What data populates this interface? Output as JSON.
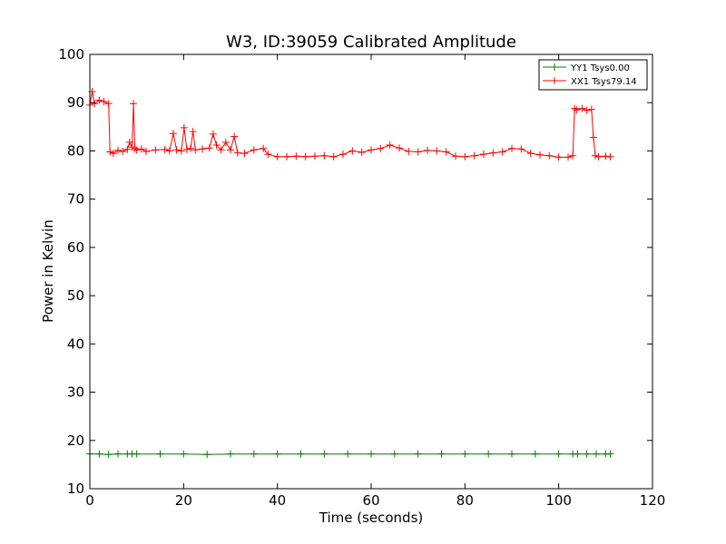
{
  "chart_data": {
    "type": "line",
    "title": "W3, ID:39059 Calibrated Amplitude",
    "xlabel": "Time (seconds)",
    "ylabel": "Power in Kelvin",
    "xlim": [
      0,
      120
    ],
    "ylim": [
      10,
      100
    ],
    "xticks": [
      "0",
      "20",
      "40",
      "60",
      "80",
      "100",
      "120"
    ],
    "yticks": [
      "10",
      "20",
      "30",
      "40",
      "50",
      "60",
      "70",
      "80",
      "90",
      "100"
    ],
    "grid": false,
    "legend_position": "top-right",
    "series": [
      {
        "name": "YY1 Tsys0.00",
        "color": "#008000",
        "marker": "+",
        "x": [
          0,
          2,
          4,
          6,
          8,
          9,
          10,
          15,
          20,
          25,
          30,
          35,
          40,
          45,
          50,
          55,
          60,
          65,
          70,
          75,
          80,
          85,
          90,
          95,
          100,
          103,
          104,
          106,
          108,
          110,
          111
        ],
        "y": [
          17.2,
          17.2,
          17.1,
          17.2,
          17.2,
          17.2,
          17.2,
          17.2,
          17.2,
          17.1,
          17.2,
          17.2,
          17.2,
          17.2,
          17.2,
          17.2,
          17.2,
          17.2,
          17.2,
          17.2,
          17.2,
          17.2,
          17.2,
          17.2,
          17.2,
          17.2,
          17.2,
          17.2,
          17.2,
          17.2,
          17.2
        ]
      },
      {
        "name": "XX1 Tsys79.14",
        "color": "#ff0000",
        "marker": "+",
        "x": [
          0,
          0.5,
          1,
          2,
          3,
          4,
          4.3,
          5,
          6,
          7,
          8,
          8.5,
          9,
          9.3,
          9.6,
          10,
          11,
          12,
          14,
          16,
          17,
          17.8,
          18.5,
          19.5,
          20.1,
          20.7,
          21.5,
          22,
          22.5,
          24,
          25.5,
          26.3,
          27,
          28,
          29,
          30,
          30.8,
          31.5,
          33,
          35,
          37,
          38,
          40,
          42,
          44,
          46,
          48,
          50,
          52,
          54,
          56,
          58,
          60,
          62,
          64,
          66,
          68,
          70,
          72,
          74,
          76,
          78,
          80,
          82,
          84,
          86,
          88,
          90,
          92,
          94,
          96,
          98,
          100,
          102,
          103,
          103.4,
          103.8,
          105,
          106,
          107,
          107.4,
          107.8,
          108.5,
          110,
          111
        ],
        "y": [
          89.5,
          92.3,
          89.8,
          90.5,
          90.2,
          89.8,
          79.8,
          79.5,
          80.1,
          79.9,
          80.3,
          81.8,
          80.8,
          89.8,
          80.5,
          80.2,
          80.4,
          79.9,
          80.2,
          80.3,
          80.0,
          83.6,
          80.2,
          80.0,
          84.8,
          80.3,
          80.5,
          84.0,
          80.2,
          80.4,
          80.6,
          83.5,
          81.2,
          80.2,
          81.8,
          80.2,
          83.0,
          79.6,
          79.5,
          80.2,
          80.5,
          79.3,
          78.8,
          78.8,
          78.9,
          78.8,
          78.9,
          79.0,
          78.8,
          79.3,
          80.0,
          79.7,
          80.2,
          80.5,
          81.2,
          80.6,
          79.9,
          79.8,
          80.1,
          80.0,
          79.8,
          78.9,
          78.8,
          79.0,
          79.3,
          79.6,
          79.8,
          80.5,
          80.4,
          79.5,
          79.2,
          79.0,
          78.7,
          78.7,
          79.0,
          88.8,
          88.5,
          88.8,
          88.4,
          88.6,
          82.8,
          79.0,
          78.8,
          78.9,
          78.8
        ]
      }
    ]
  }
}
